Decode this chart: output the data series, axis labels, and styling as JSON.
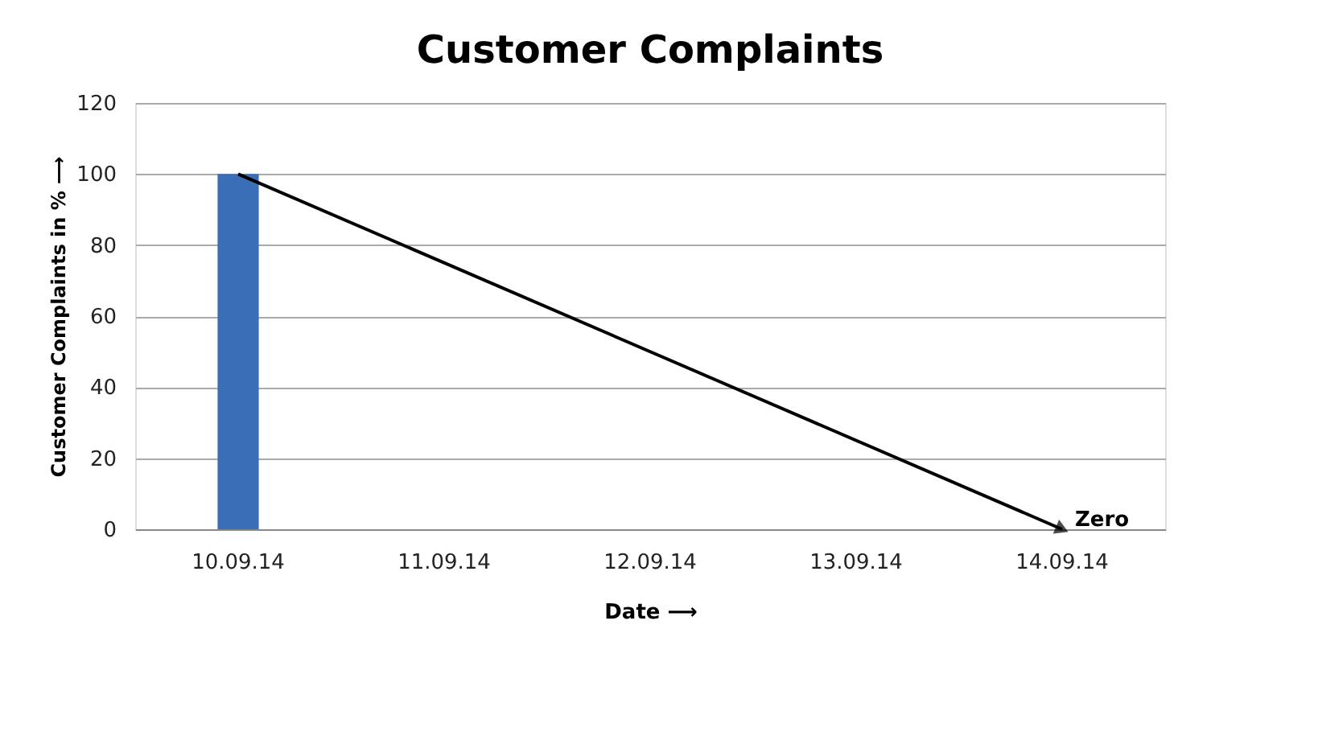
{
  "chart_data": {
    "type": "bar",
    "title": "Customer Complaints",
    "xlabel": "Date ⟶",
    "ylabel": "Customer Complaints in % ⟶",
    "categories": [
      "10.09.14",
      "11.09.14",
      "12.09.14",
      "13.09.14",
      "14.09.14"
    ],
    "values": [
      100,
      null,
      null,
      null,
      null
    ],
    "color": "#3a6fb8",
    "ylim": [
      0,
      120
    ],
    "yticks": [
      0,
      20,
      40,
      60,
      80,
      100,
      120
    ],
    "grid": "y",
    "annotations": [
      "Zero"
    ]
  }
}
